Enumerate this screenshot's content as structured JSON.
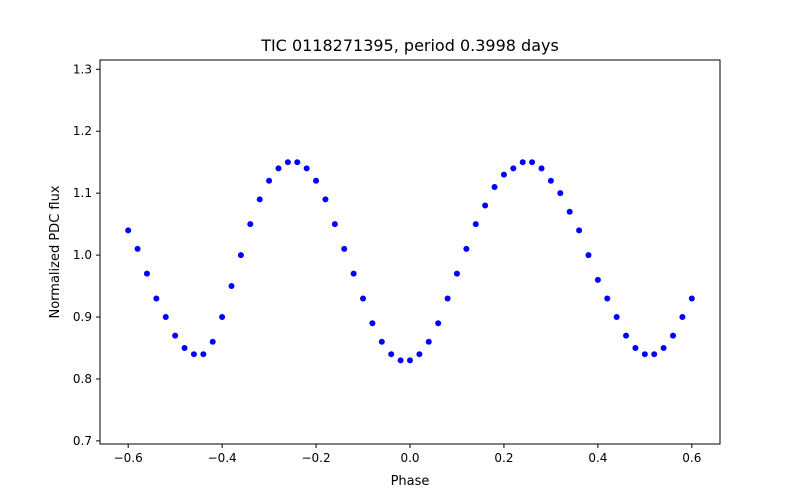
{
  "chart_data": {
    "type": "scatter",
    "title": "TIC 0118271395, period 0.3998 days",
    "xlabel": "Phase",
    "ylabel": "Normalized PDC flux",
    "xlim": [
      -0.66,
      0.66
    ],
    "ylim": [
      0.695,
      1.315
    ],
    "xticks": [
      -0.6,
      -0.4,
      -0.2,
      0.0,
      0.2,
      0.4,
      0.6
    ],
    "xtick_labels": [
      "−0.6",
      "−0.4",
      "−0.2",
      "0.0",
      "0.2",
      "0.4",
      "0.6"
    ],
    "yticks": [
      0.7,
      0.8,
      0.9,
      1.0,
      1.1,
      1.2,
      1.3
    ],
    "ytick_labels": [
      "0.7",
      "0.8",
      "0.9",
      "1.0",
      "1.1",
      "1.2",
      "1.3"
    ],
    "grid": false,
    "legend": "none",
    "marker_color": "#0000ff",
    "series": [
      {
        "x": [
          -0.6,
          -0.58,
          -0.56,
          -0.54,
          -0.52,
          -0.5,
          -0.48,
          -0.46,
          -0.44,
          -0.42,
          -0.4,
          -0.38,
          -0.36,
          -0.34,
          -0.32,
          -0.3,
          -0.28,
          -0.26,
          -0.24,
          -0.22,
          -0.2,
          -0.18,
          -0.16,
          -0.14,
          -0.12,
          -0.1,
          -0.08,
          -0.06,
          -0.04,
          -0.02,
          0.0,
          0.02,
          0.04,
          0.06,
          0.08,
          0.1,
          0.12,
          0.14,
          0.16,
          0.18,
          0.2,
          0.22,
          0.24,
          0.26,
          0.28,
          0.3,
          0.32,
          0.34,
          0.36,
          0.38,
          0.4,
          0.42,
          0.44,
          0.46,
          0.48,
          0.5,
          0.52,
          0.54,
          0.56,
          0.58,
          0.6
        ],
        "y": [
          1.04,
          1.01,
          0.97,
          0.93,
          0.9,
          0.87,
          0.85,
          0.84,
          0.84,
          0.86,
          0.9,
          0.95,
          1.0,
          1.05,
          1.09,
          1.12,
          1.14,
          1.15,
          1.15,
          1.14,
          1.12,
          1.09,
          1.05,
          1.01,
          0.97,
          0.93,
          0.89,
          0.86,
          0.84,
          0.83,
          0.83,
          0.84,
          0.86,
          0.89,
          0.93,
          0.97,
          1.01,
          1.05,
          1.08,
          1.11,
          1.13,
          1.14,
          1.15,
          1.15,
          1.14,
          1.12,
          1.1,
          1.07,
          1.04,
          1.0,
          0.96,
          0.93,
          0.9,
          0.87,
          0.85,
          0.84,
          0.84,
          0.85,
          0.87,
          0.9,
          0.93
        ]
      }
    ]
  }
}
